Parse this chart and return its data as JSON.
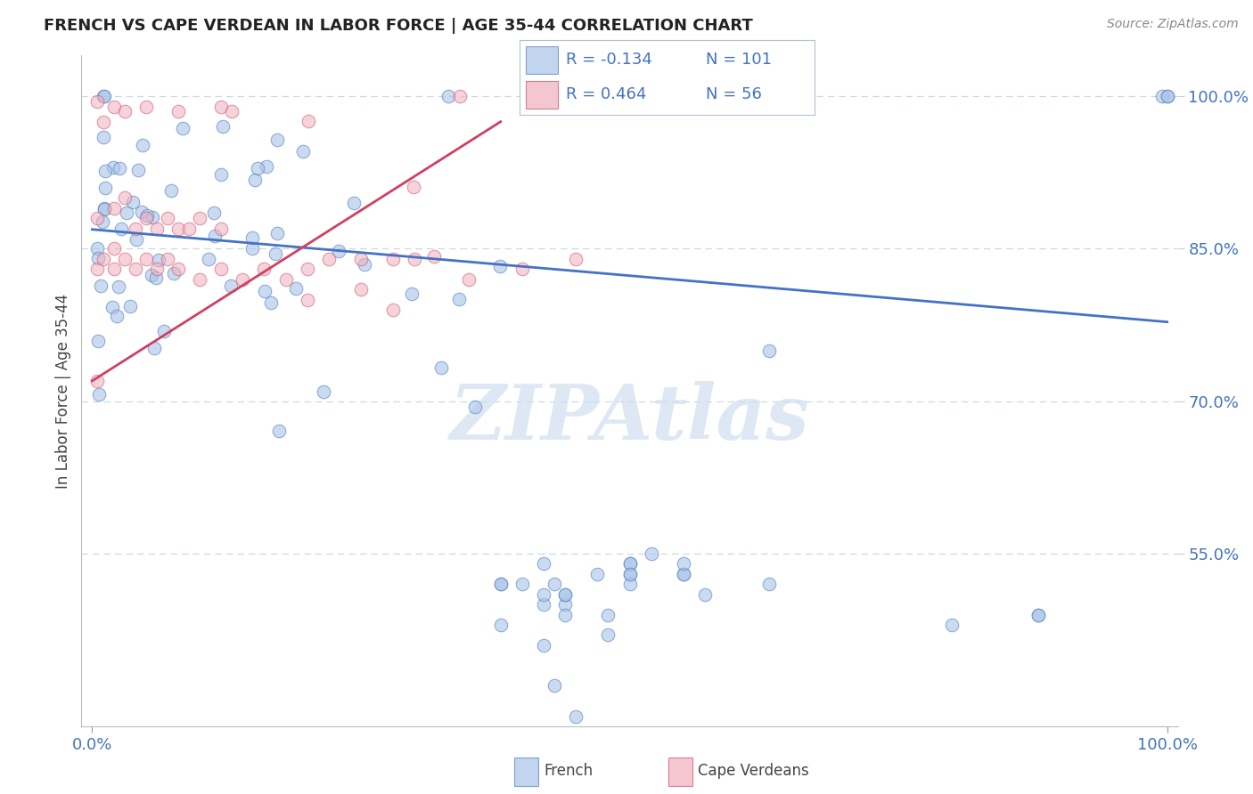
{
  "title": "FRENCH VS CAPE VERDEAN IN LABOR FORCE | AGE 35-44 CORRELATION CHART",
  "source_text": "Source: ZipAtlas.com",
  "ylabel": "In Labor Force | Age 35-44",
  "french_color": "#a8c4e8",
  "french_edge": "#5580c0",
  "cape_color": "#f0b0bc",
  "cape_edge": "#d05070",
  "trend_french_color": "#4472c4",
  "trend_cape_color": "#d04060",
  "legend_R_french": "-0.134",
  "legend_N_french": "101",
  "legend_R_cape": "0.464",
  "legend_N_cape": "56",
  "watermark_color": "#d0dff0",
  "grid_color": "#c8d8e8",
  "yticks": [
    0.55,
    0.7,
    0.85,
    1.0
  ],
  "ytick_labels": [
    "55.0%",
    "70.0%",
    "85.0%",
    "100.0%"
  ],
  "xtick_labels": [
    "0.0%",
    "100.0%"
  ],
  "xticks": [
    0.0,
    1.0
  ],
  "french_trend_x0": 0.0,
  "french_trend_y0": 0.869,
  "french_trend_x1": 1.0,
  "french_trend_y1": 0.778,
  "cape_trend_x0": 0.0,
  "cape_trend_y0": 0.72,
  "cape_trend_x1": 0.38,
  "cape_trend_y1": 0.975
}
